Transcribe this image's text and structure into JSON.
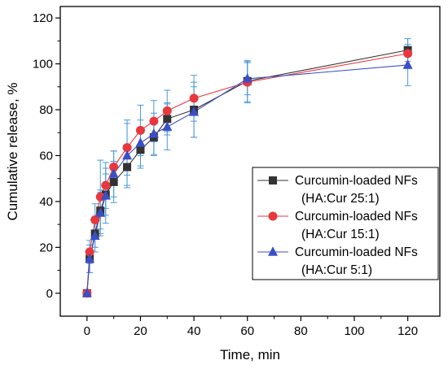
{
  "chart_data": {
    "type": "line",
    "xlabel": "Time, min",
    "ylabel": "Cumulative release, %",
    "xlim": [
      -10,
      132
    ],
    "ylim": [
      -10,
      125
    ],
    "xticks": [
      0,
      20,
      40,
      60,
      80,
      100,
      120
    ],
    "yticks": [
      0,
      20,
      40,
      60,
      80,
      100,
      120
    ],
    "grid": false,
    "legend_position": "right",
    "series": [
      {
        "name": "Curcumin-loaded NFs",
        "name_line2": "(HA:Cur 25:1)",
        "color": "#333333",
        "marker": "square",
        "x": [
          0,
          1,
          3,
          5,
          7,
          10,
          15,
          20,
          25,
          30,
          40,
          60,
          120
        ],
        "y": [
          0,
          15,
          26,
          36,
          43,
          48.5,
          55,
          62.5,
          68,
          76,
          80,
          92.5,
          106
        ],
        "err": [
          0,
          6,
          6,
          8,
          9,
          9,
          8,
          8,
          8,
          7,
          12,
          9,
          5
        ]
      },
      {
        "name": "Curcumin-loaded NFs",
        "name_line2": "(HA:Cur 15:1)",
        "color": "#e8383d",
        "marker": "circle",
        "x": [
          0,
          1,
          3,
          5,
          7,
          10,
          15,
          20,
          25,
          30,
          40,
          60,
          120
        ],
        "y": [
          0,
          18,
          32,
          42,
          47,
          55,
          63.5,
          71,
          75,
          79.5,
          85,
          92,
          104.5
        ],
        "err": [
          0,
          5,
          7,
          16,
          10,
          7,
          12,
          11,
          9,
          9,
          10,
          9,
          6.5
        ]
      },
      {
        "name": "Curcumin-loaded NFs",
        "name_line2": "(HA:Cur 5:1)",
        "color": "#3a4fc7",
        "marker": "triangle",
        "x": [
          0,
          1,
          3,
          5,
          7,
          10,
          15,
          20,
          25,
          30,
          40,
          60,
          120
        ],
        "y": [
          0,
          15,
          25,
          35,
          42.5,
          52,
          60,
          65.5,
          69.5,
          72.5,
          79,
          93.5,
          99.5
        ],
        "err": [
          0,
          6,
          7,
          10,
          12,
          10,
          14,
          10,
          9,
          10,
          11,
          7,
          9
        ]
      }
    ]
  }
}
